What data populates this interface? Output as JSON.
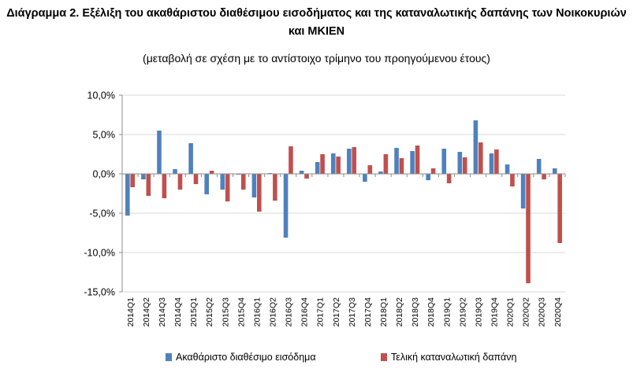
{
  "chart_data": {
    "type": "bar",
    "title": "Διάγραμμα 2. Εξέλιξη του ακαθάριστου διαθέσιμου εισοδήματος και της καταναλωτικής δαπάνης των Νοικοκυριών και ΜΚΙΕΝ",
    "subtitle": "(μεταβολή σε σχέση με το αντίστοιχο τρίμηνο του προηγούμενου έτους)",
    "xlabel": "",
    "ylabel": "",
    "ylim": [
      -15,
      10
    ],
    "yticks": [
      10,
      5,
      0,
      -5,
      -10,
      -15
    ],
    "ytick_labels": [
      "10,0%",
      "5,0%",
      "0,0%",
      "-5,0%",
      "-10,0%",
      "-15,0%"
    ],
    "categories": [
      "2014Q1",
      "2014Q2",
      "2014Q3",
      "2014Q4",
      "2015Q1",
      "2015Q2",
      "2015Q3",
      "2015Q4",
      "2016Q1",
      "2016Q2",
      "2016Q3",
      "2016Q4",
      "2017Q1",
      "2017Q2",
      "2017Q3",
      "2017Q4",
      "2018Q1",
      "2018Q2",
      "2018Q3",
      "2018Q4",
      "2019Q1",
      "2019Q2",
      "2019Q3",
      "2019Q4",
      "2020Q1",
      "2020Q2",
      "2020Q3",
      "2020Q4"
    ],
    "series": [
      {
        "name": "Ακαθάριστο διαθέσιμο εισόδημα",
        "color": "#4f81bd",
        "values": [
          -5.3,
          -0.7,
          5.5,
          0.6,
          3.9,
          -2.6,
          -2.0,
          -0.1,
          -3.0,
          0.1,
          -8.1,
          0.4,
          1.5,
          2.6,
          3.2,
          -1.0,
          0.3,
          3.3,
          2.9,
          -0.8,
          3.2,
          2.8,
          6.8,
          2.6,
          1.2,
          -4.4,
          1.9,
          0.7
        ]
      },
      {
        "name": "Τελική καταναλωτική δαπάνη",
        "color": "#c0504d",
        "values": [
          -1.7,
          -2.8,
          -3.1,
          -2.0,
          -1.3,
          0.4,
          -3.5,
          -2.0,
          -4.8,
          -3.4,
          3.5,
          -0.6,
          2.5,
          2.2,
          3.4,
          1.1,
          2.5,
          2.0,
          3.6,
          0.7,
          -1.2,
          2.1,
          4.0,
          3.1,
          -1.6,
          -13.9,
          -0.7,
          -8.8
        ]
      }
    ],
    "grid": true,
    "legend_position": "bottom"
  }
}
